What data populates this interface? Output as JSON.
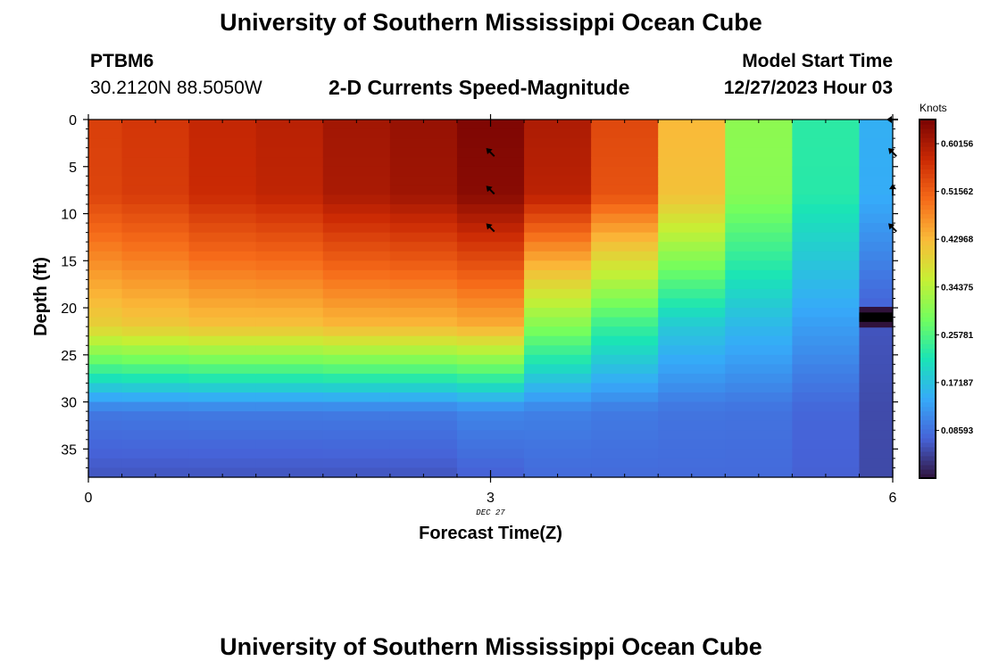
{
  "header": {
    "title": "University of Southern Mississippi Ocean Cube",
    "station_id": "PTBM6",
    "station_coords": "30.2120N  88.5050W",
    "plot_title": "2-D Currents Speed-Magnitude",
    "model_start_label": "Model Start Time",
    "model_start_value": "12/27/2023 Hour 03"
  },
  "footer": {
    "title": "University of Southern Mississippi Ocean Cube"
  },
  "chart_data": {
    "type": "heatmap",
    "title": "2-D Currents Speed-Magnitude",
    "xlabel": "Forecast Time(Z)",
    "ylabel": "Depth (ft)",
    "x_ticks": [
      0,
      3,
      6
    ],
    "x_tick_labels": [
      "0",
      "3",
      "6"
    ],
    "x_date_label": "DEC 27",
    "xlim": [
      0,
      6
    ],
    "y_ticks": [
      0,
      5,
      10,
      15,
      20,
      25,
      30,
      35
    ],
    "y_tick_labels": [
      "0",
      "5",
      "10",
      "15",
      "20",
      "25",
      "30",
      "35"
    ],
    "ylim": [
      0,
      38
    ],
    "y_inverted": true,
    "colorbar": {
      "label": "Knots",
      "ticks": [
        0.08593,
        0.17187,
        0.25781,
        0.34375,
        0.42968,
        0.51562,
        0.60156
      ],
      "tick_labels": [
        "0.08593",
        "0.17187",
        "0.25781",
        "0.34375",
        "0.42968",
        "0.51562",
        "0.60156"
      ],
      "range": [
        0,
        0.645
      ],
      "colormap": [
        "#30123b",
        "#4662d7",
        "#36aaf9",
        "#1ae4b6",
        "#72fe5e",
        "#c7ef34",
        "#faba39",
        "#f66b19",
        "#cb2a04",
        "#7a0403"
      ]
    },
    "time_columns": [
      {
        "t_start": 0.0,
        "t_end": 0.25,
        "surface": 0.55,
        "mid": 0.4,
        "bottom": 0.06
      },
      {
        "t_start": 0.25,
        "t_end": 0.75,
        "surface": 0.56,
        "mid": 0.41,
        "bottom": 0.06
      },
      {
        "t_start": 0.75,
        "t_end": 1.25,
        "surface": 0.58,
        "mid": 0.42,
        "bottom": 0.06
      },
      {
        "t_start": 1.25,
        "t_end": 1.75,
        "surface": 0.59,
        "mid": 0.42,
        "bottom": 0.06
      },
      {
        "t_start": 1.75,
        "t_end": 2.25,
        "surface": 0.61,
        "mid": 0.43,
        "bottom": 0.06
      },
      {
        "t_start": 2.25,
        "t_end": 2.75,
        "surface": 0.62,
        "mid": 0.43,
        "bottom": 0.06
      },
      {
        "t_start": 2.75,
        "t_end": 3.25,
        "surface": 0.64,
        "mid": 0.44,
        "bottom": 0.07
      },
      {
        "t_start": 3.25,
        "t_end": 3.75,
        "surface": 0.6,
        "mid": 0.3,
        "bottom": 0.08
      },
      {
        "t_start": 3.75,
        "t_end": 4.25,
        "surface": 0.54,
        "mid": 0.24,
        "bottom": 0.08
      },
      {
        "t_start": 4.25,
        "t_end": 4.75,
        "surface": 0.43,
        "mid": 0.18,
        "bottom": 0.08
      },
      {
        "t_start": 4.75,
        "t_end": 5.25,
        "surface": 0.31,
        "mid": 0.16,
        "bottom": 0.08
      },
      {
        "t_start": 5.25,
        "t_end": 5.75,
        "surface": 0.23,
        "mid": 0.13,
        "bottom": 0.07
      },
      {
        "t_start": 5.75,
        "t_end": 6.0,
        "surface": 0.15,
        "mid": 0.06,
        "bottom": 0.05
      }
    ],
    "no_data_band": {
      "t_start": 5.75,
      "t_end": 6.0,
      "depth_top": 20.5,
      "depth_bottom": 21.5
    },
    "direction_arrows": [
      {
        "t": 3,
        "depth": 3.5,
        "direction": "northwest"
      },
      {
        "t": 3,
        "depth": 7.5,
        "direction": "northwest"
      },
      {
        "t": 3,
        "depth": 11.5,
        "direction": "northwest"
      },
      {
        "t": 6,
        "depth": 0,
        "direction": "west"
      },
      {
        "t": 6,
        "depth": 3.5,
        "direction": "northwest"
      },
      {
        "t": 6,
        "depth": 7.5,
        "direction": "north"
      },
      {
        "t": 6,
        "depth": 11.5,
        "direction": "northwest"
      }
    ],
    "grid": false
  }
}
